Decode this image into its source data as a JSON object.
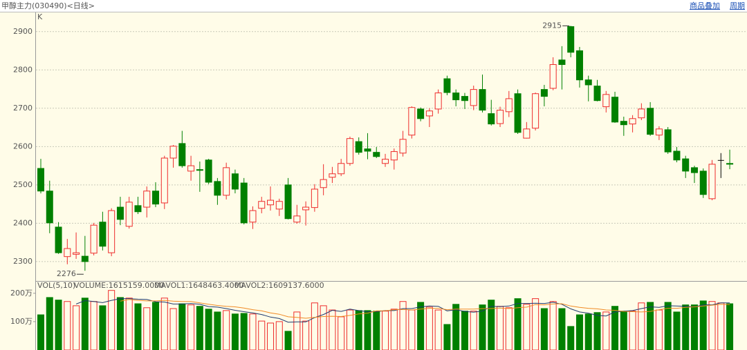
{
  "header": {
    "title": "甲醇主力(030490)<日线>",
    "links": [
      "商品叠加",
      "周期"
    ]
  },
  "chart_data": [
    {
      "type": "candlestick",
      "axis_label": "K",
      "up_color": "#ee2b2b",
      "down_color": "#008000",
      "flat_color": "#000000",
      "ylim": [
        2253,
        2950
      ],
      "yticks": [
        2300,
        2400,
        2500,
        2600,
        2700,
        2800,
        2900
      ],
      "grid": true,
      "open": [
        2543,
        2484,
        2390,
        2313,
        2319,
        2314,
        2322,
        2403,
        2323,
        2442,
        2392,
        2446,
        2442,
        2484,
        2453,
        2570,
        2608,
        2536,
        2540,
        2565,
        2509,
        2473,
        2529,
        2505,
        2403,
        2439,
        2448,
        2437,
        2500,
        2403,
        2435,
        2441,
        2493,
        2520,
        2529,
        2556,
        2613,
        2594,
        2585,
        2556,
        2565,
        2583,
        2630,
        2698,
        2680,
        2698,
        2777,
        2740,
        2731,
        2707,
        2749,
        2686,
        2660,
        2691,
        2738,
        2622,
        2648,
        2749,
        2752,
        2826,
        2913,
        2850,
        2774,
        2758,
        2704,
        2729,
        2666,
        2659,
        2675,
        2700,
        2630,
        2644,
        2588,
        2568,
        2545,
        2536,
        2464,
        2564,
        2556
      ],
      "high": [
        2568,
        2511,
        2403,
        2359,
        2376,
        2367,
        2401,
        2430,
        2439,
        2469,
        2469,
        2469,
        2496,
        2507,
        2576,
        2604,
        2641,
        2576,
        2561,
        2568,
        2518,
        2558,
        2540,
        2518,
        2444,
        2469,
        2496,
        2464,
        2518,
        2448,
        2457,
        2502,
        2554,
        2547,
        2568,
        2626,
        2624,
        2635,
        2599,
        2581,
        2595,
        2641,
        2705,
        2702,
        2700,
        2749,
        2785,
        2749,
        2740,
        2759,
        2788,
        2722,
        2704,
        2745,
        2749,
        2664,
        2741,
        2761,
        2833,
        2862,
        2915,
        2860,
        2785,
        2774,
        2745,
        2743,
        2678,
        2682,
        2713,
        2716,
        2653,
        2651,
        2599,
        2576,
        2550,
        2543,
        2565,
        2583,
        2592
      ],
      "low": [
        2478,
        2374,
        2320,
        2293,
        2307,
        2276,
        2316,
        2329,
        2314,
        2395,
        2386,
        2424,
        2415,
        2442,
        2437,
        2545,
        2545,
        2511,
        2482,
        2502,
        2448,
        2462,
        2478,
        2397,
        2385,
        2426,
        2433,
        2419,
        2410,
        2399,
        2394,
        2430,
        2473,
        2505,
        2523,
        2550,
        2579,
        2567,
        2570,
        2547,
        2540,
        2574,
        2621,
        2666,
        2651,
        2686,
        2734,
        2705,
        2698,
        2695,
        2689,
        2655,
        2651,
        2677,
        2633,
        2621,
        2642,
        2705,
        2747,
        2749,
        2833,
        2754,
        2718,
        2718,
        2689,
        2662,
        2628,
        2637,
        2669,
        2628,
        2617,
        2581,
        2559,
        2518,
        2505,
        2466,
        2460,
        2518,
        2541
      ],
      "close": [
        2484,
        2401,
        2323,
        2334,
        2323,
        2300,
        2395,
        2340,
        2433,
        2410,
        2455,
        2430,
        2484,
        2450,
        2570,
        2601,
        2550,
        2550,
        2538,
        2507,
        2473,
        2545,
        2489,
        2401,
        2433,
        2457,
        2460,
        2457,
        2412,
        2419,
        2442,
        2489,
        2514,
        2529,
        2556,
        2621,
        2585,
        2588,
        2574,
        2567,
        2587,
        2619,
        2702,
        2673,
        2693,
        2740,
        2741,
        2722,
        2720,
        2749,
        2695,
        2659,
        2695,
        2725,
        2637,
        2646,
        2738,
        2731,
        2814,
        2814,
        2846,
        2774,
        2761,
        2720,
        2736,
        2664,
        2657,
        2673,
        2698,
        2632,
        2646,
        2586,
        2565,
        2536,
        2532,
        2475,
        2554,
        2564,
        2554
      ],
      "annotations": [
        {
          "text": "2915",
          "value": 2915
        },
        {
          "text": "2276",
          "value": 2276
        }
      ]
    },
    {
      "type": "bar",
      "title": "VOL(5,10)",
      "ylim": [
        0,
        236
      ],
      "yticks": [
        {
          "value": 100,
          "label": "100万"
        },
        {
          "value": 200,
          "label": "200万"
        }
      ],
      "series": [
        {
          "name": "VOLUME:1615159.0000",
          "color": "#777777",
          "values": [
            124,
            185,
            176,
            171,
            156,
            183,
            171,
            156,
            210,
            185,
            183,
            163,
            149,
            168,
            183,
            146,
            163,
            159,
            154,
            144,
            134,
            139,
            127,
            129,
            127,
            102,
            95,
            100,
            66,
            134,
            102,
            166,
            156,
            141,
            117,
            141,
            139,
            139,
            137,
            137,
            144,
            171,
            141,
            168,
            151,
            141,
            90,
            161,
            137,
            137,
            159,
            176,
            154,
            149,
            181,
            161,
            181,
            146,
            171,
            146,
            83,
            124,
            127,
            132,
            134,
            154,
            137,
            137,
            166,
            168,
            141,
            168,
            134,
            159,
            159,
            173,
            171,
            166,
            163
          ]
        },
        {
          "name": "MAVOL1:1648463.4000",
          "color": "#1f3a6e",
          "values": [
            null,
            null,
            null,
            null,
            162,
            174,
            171,
            167,
            175,
            181,
            181,
            179,
            178,
            170,
            169,
            162,
            162,
            164,
            161,
            153,
            151,
            146,
            140,
            135,
            131,
            125,
            116,
            111,
            98,
            99,
            99,
            114,
            125,
            140,
            136,
            144,
            139,
            135,
            135,
            139,
            139,
            146,
            146,
            152,
            155,
            154,
            138,
            142,
            136,
            133,
            137,
            154,
            153,
            155,
            164,
            164,
            165,
            164,
            168,
            161,
            145,
            134,
            130,
            122,
            120,
            134,
            137,
            139,
            146,
            152,
            150,
            156,
            155,
            154,
            152,
            159,
            159,
            166,
            166
          ]
        },
        {
          "name": "MAVOL2:1609137.6000",
          "color": "#f08a24",
          "values": [
            null,
            null,
            null,
            null,
            null,
            null,
            null,
            null,
            null,
            172,
            178,
            175,
            173,
            173,
            175,
            172,
            171,
            171,
            166,
            161,
            157,
            154,
            152,
            148,
            142,
            138,
            131,
            126,
            117,
            115,
            112,
            115,
            118,
            119,
            118,
            122,
            127,
            130,
            138,
            138,
            142,
            143,
            141,
            144,
            147,
            147,
            142,
            144,
            144,
            144,
            146,
            146,
            148,
            146,
            149,
            151,
            160,
            159,
            162,
            163,
            155,
            150,
            147,
            145,
            141,
            140,
            136,
            135,
            134,
            136,
            142,
            147,
            147,
            150,
            152,
            155,
            158,
            161,
            160
          ]
        }
      ]
    }
  ]
}
